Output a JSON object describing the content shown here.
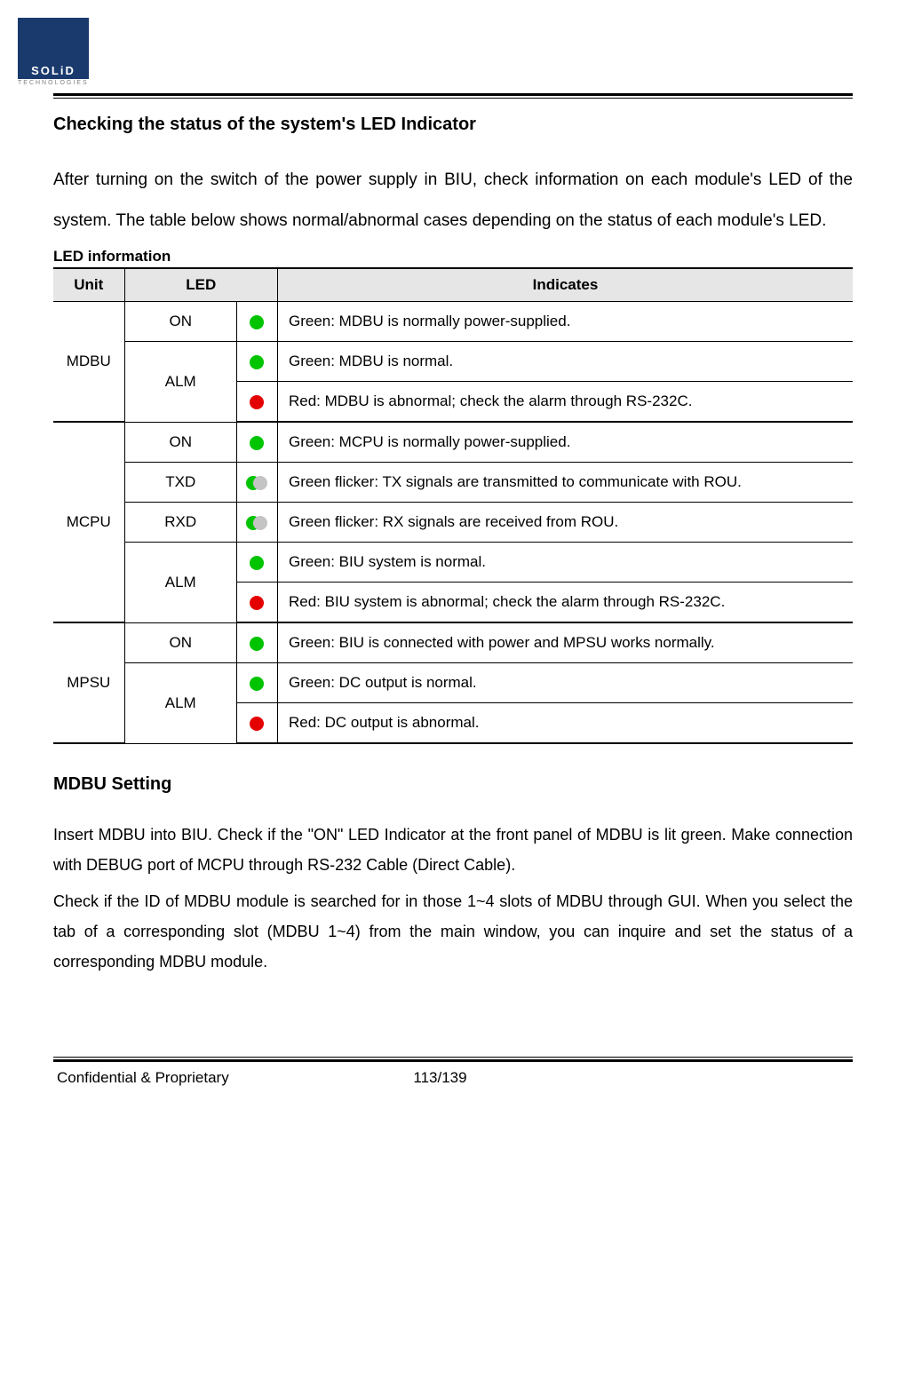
{
  "logo": {
    "brand": "SOLiD",
    "sub": "TECHNOLOGIES"
  },
  "heading1": "Checking the status of the system's LED Indicator",
  "intro": "After turning on the switch of the power supply in BIU, check information on each module's LED of the system. The table below shows normal/abnormal cases depending on the status of each module's LED.",
  "table_caption": "LED information",
  "table": {
    "headers": {
      "unit": "Unit",
      "led": "LED",
      "indicates": "Indicates"
    },
    "colors": {
      "green": "#00c400",
      "red": "#e40000",
      "grey": "#c4c4c4",
      "header_bg": "#e6e6e6"
    },
    "units": [
      {
        "name": "MDBU",
        "rows": [
          {
            "led": "ON",
            "led_rowspan": 1,
            "icon": "green",
            "desc": "Green: MDBU is normally power-supplied."
          },
          {
            "led": "ALM",
            "led_rowspan": 2,
            "icon": "green",
            "desc": "Green: MDBU is normal."
          },
          {
            "icon": "red",
            "desc": "Red: MDBU is abnormal; check the alarm through RS-232C."
          }
        ]
      },
      {
        "name": "MCPU",
        "rows": [
          {
            "led": "ON",
            "led_rowspan": 1,
            "icon": "green",
            "desc": "Green: MCPU is normally power-supplied."
          },
          {
            "led": "TXD",
            "led_rowspan": 1,
            "icon": "flicker",
            "desc": "Green flicker: TX signals are transmitted to communicate with ROU."
          },
          {
            "led": "RXD",
            "led_rowspan": 1,
            "icon": "flicker",
            "desc": "Green flicker: RX signals are received from ROU."
          },
          {
            "led": "ALM",
            "led_rowspan": 2,
            "icon": "green",
            "desc": "Green: BIU system is normal."
          },
          {
            "icon": "red",
            "desc": "Red: BIU system is abnormal; check the alarm through RS-232C."
          }
        ]
      },
      {
        "name": "MPSU",
        "rows": [
          {
            "led": "ON",
            "led_rowspan": 1,
            "icon": "green",
            "desc": "Green: BIU is connected with power and MPSU works normally."
          },
          {
            "led": "ALM",
            "led_rowspan": 2,
            "icon": "green",
            "desc": "Green: DC output is normal."
          },
          {
            "icon": "red",
            "desc": "Red: DC output is abnormal."
          }
        ]
      }
    ]
  },
  "heading2": "MDBU Setting",
  "body2_a": "Insert MDBU into BIU. Check if the \"ON\" LED Indicator at the front panel of MDBU is lit green. Make connection with DEBUG port of MCPU through RS-232 Cable (Direct Cable).",
  "body2_b": "Check if the ID of MDBU module is searched for in those 1~4 slots of MDBU through GUI. When you select the tab of a corresponding slot (MDBU 1~4) from the main window, you can inquire and set the status of a corresponding MDBU module.",
  "footer": {
    "left": "Confidential & Proprietary",
    "page": "113/139"
  }
}
